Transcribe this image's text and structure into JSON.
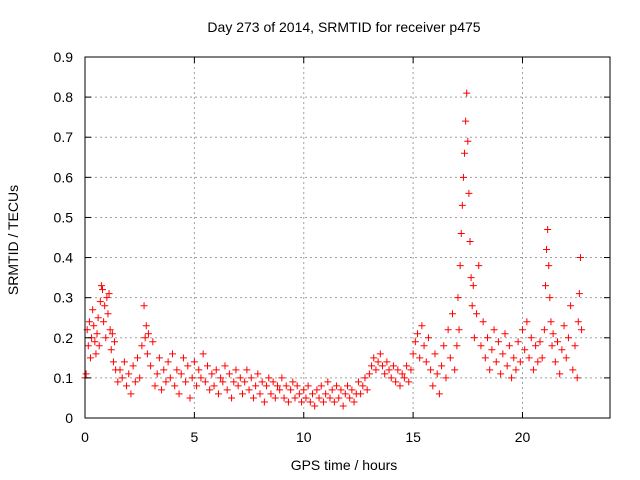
{
  "chart_data": {
    "type": "scatter",
    "title": "Day 273 of 2014, SRMTID for receiver p475",
    "xlabel": "GPS time / hours",
    "ylabel": "SRMTID / TECUs",
    "xlim": [
      0,
      24
    ],
    "ylim": [
      0,
      0.9
    ],
    "xticks": [
      0,
      5,
      10,
      15,
      20
    ],
    "yticks": [
      0,
      0.1,
      0.2,
      0.3,
      0.4,
      0.5,
      0.6,
      0.7,
      0.8,
      0.9
    ],
    "grid": true,
    "marker": "+",
    "color": "#ff0000",
    "series": [
      {
        "name": "SRMTID",
        "points": [
          [
            0.0,
            0.1
          ],
          [
            0.05,
            0.11
          ],
          [
            0.1,
            0.22
          ],
          [
            0.15,
            0.18
          ],
          [
            0.2,
            0.24
          ],
          [
            0.25,
            0.15
          ],
          [
            0.3,
            0.2
          ],
          [
            0.35,
            0.27
          ],
          [
            0.4,
            0.23
          ],
          [
            0.45,
            0.19
          ],
          [
            0.5,
            0.16
          ],
          [
            0.55,
            0.21
          ],
          [
            0.6,
            0.25
          ],
          [
            0.65,
            0.18
          ],
          [
            0.7,
            0.29
          ],
          [
            0.75,
            0.33
          ],
          [
            0.8,
            0.32
          ],
          [
            0.85,
            0.24
          ],
          [
            0.9,
            0.28
          ],
          [
            0.95,
            0.2
          ],
          [
            1.0,
            0.3
          ],
          [
            1.05,
            0.26
          ],
          [
            1.1,
            0.31
          ],
          [
            1.15,
            0.22
          ],
          [
            1.2,
            0.17
          ],
          [
            1.25,
            0.21
          ],
          [
            1.3,
            0.14
          ],
          [
            1.35,
            0.19
          ],
          [
            1.4,
            0.12
          ],
          [
            1.5,
            0.09
          ],
          [
            1.6,
            0.12
          ],
          [
            1.7,
            0.1
          ],
          [
            1.8,
            0.14
          ],
          [
            1.9,
            0.08
          ],
          [
            2.0,
            0.11
          ],
          [
            2.1,
            0.06
          ],
          [
            2.2,
            0.13
          ],
          [
            2.3,
            0.09
          ],
          [
            2.4,
            0.15
          ],
          [
            2.5,
            0.1
          ],
          [
            2.6,
            0.18
          ],
          [
            2.7,
            0.28
          ],
          [
            2.75,
            0.2
          ],
          [
            2.8,
            0.23
          ],
          [
            2.85,
            0.16
          ],
          [
            2.9,
            0.21
          ],
          [
            3.0,
            0.13
          ],
          [
            3.1,
            0.19
          ],
          [
            3.2,
            0.08
          ],
          [
            3.3,
            0.11
          ],
          [
            3.4,
            0.15
          ],
          [
            3.5,
            0.07
          ],
          [
            3.6,
            0.12
          ],
          [
            3.7,
            0.09
          ],
          [
            3.8,
            0.14
          ],
          [
            3.9,
            0.1
          ],
          [
            4.0,
            0.16
          ],
          [
            4.1,
            0.08
          ],
          [
            4.2,
            0.12
          ],
          [
            4.3,
            0.06
          ],
          [
            4.4,
            0.11
          ],
          [
            4.5,
            0.15
          ],
          [
            4.6,
            0.09
          ],
          [
            4.7,
            0.13
          ],
          [
            4.8,
            0.05
          ],
          [
            4.9,
            0.1
          ],
          [
            5.0,
            0.14
          ],
          [
            5.1,
            0.08
          ],
          [
            5.2,
            0.12
          ],
          [
            5.3,
            0.1
          ],
          [
            5.4,
            0.16
          ],
          [
            5.5,
            0.09
          ],
          [
            5.6,
            0.13
          ],
          [
            5.7,
            0.07
          ],
          [
            5.8,
            0.11
          ],
          [
            5.9,
            0.08
          ],
          [
            6.0,
            0.12
          ],
          [
            6.1,
            0.06
          ],
          [
            6.2,
            0.1
          ],
          [
            6.3,
            0.09
          ],
          [
            6.4,
            0.13
          ],
          [
            6.5,
            0.07
          ],
          [
            6.6,
            0.11
          ],
          [
            6.7,
            0.05
          ],
          [
            6.8,
            0.09
          ],
          [
            6.9,
            0.12
          ],
          [
            7.0,
            0.08
          ],
          [
            7.1,
            0.1
          ],
          [
            7.2,
            0.06
          ],
          [
            7.3,
            0.09
          ],
          [
            7.4,
            0.12
          ],
          [
            7.5,
            0.07
          ],
          [
            7.6,
            0.1
          ],
          [
            7.7,
            0.05
          ],
          [
            7.8,
            0.08
          ],
          [
            7.9,
            0.11
          ],
          [
            8.0,
            0.06
          ],
          [
            8.1,
            0.09
          ],
          [
            8.2,
            0.04
          ],
          [
            8.3,
            0.08
          ],
          [
            8.4,
            0.1
          ],
          [
            8.5,
            0.06
          ],
          [
            8.6,
            0.09
          ],
          [
            8.7,
            0.05
          ],
          [
            8.8,
            0.08
          ],
          [
            8.9,
            0.07
          ],
          [
            9.0,
            0.1
          ],
          [
            9.1,
            0.05
          ],
          [
            9.2,
            0.08
          ],
          [
            9.3,
            0.04
          ],
          [
            9.4,
            0.07
          ],
          [
            9.5,
            0.09
          ],
          [
            9.6,
            0.05
          ],
          [
            9.7,
            0.08
          ],
          [
            9.8,
            0.06
          ],
          [
            9.9,
            0.04
          ],
          [
            10.0,
            0.07
          ],
          [
            10.1,
            0.05
          ],
          [
            10.2,
            0.08
          ],
          [
            10.3,
            0.04
          ],
          [
            10.4,
            0.06
          ],
          [
            10.5,
            0.03
          ],
          [
            10.6,
            0.07
          ],
          [
            10.7,
            0.05
          ],
          [
            10.8,
            0.08
          ],
          [
            10.9,
            0.04
          ],
          [
            11.0,
            0.06
          ],
          [
            11.1,
            0.09
          ],
          [
            11.2,
            0.05
          ],
          [
            11.3,
            0.07
          ],
          [
            11.4,
            0.04
          ],
          [
            11.5,
            0.08
          ],
          [
            11.6,
            0.05
          ],
          [
            11.7,
            0.07
          ],
          [
            11.8,
            0.03
          ],
          [
            11.9,
            0.06
          ],
          [
            12.0,
            0.08
          ],
          [
            12.1,
            0.05
          ],
          [
            12.2,
            0.07
          ],
          [
            12.3,
            0.04
          ],
          [
            12.4,
            0.06
          ],
          [
            12.5,
            0.09
          ],
          [
            12.6,
            0.06
          ],
          [
            12.7,
            0.08
          ],
          [
            12.8,
            0.1
          ],
          [
            12.9,
            0.07
          ],
          [
            13.0,
            0.11
          ],
          [
            13.1,
            0.13
          ],
          [
            13.2,
            0.15
          ],
          [
            13.3,
            0.12
          ],
          [
            13.4,
            0.14
          ],
          [
            13.5,
            0.16
          ],
          [
            13.6,
            0.13
          ],
          [
            13.7,
            0.11
          ],
          [
            13.8,
            0.14
          ],
          [
            13.9,
            0.12
          ],
          [
            14.0,
            0.1
          ],
          [
            14.1,
            0.13
          ],
          [
            14.2,
            0.09
          ],
          [
            14.3,
            0.12
          ],
          [
            14.4,
            0.08
          ],
          [
            14.5,
            0.11
          ],
          [
            14.6,
            0.1
          ],
          [
            14.7,
            0.13
          ],
          [
            14.8,
            0.09
          ],
          [
            14.9,
            0.12
          ],
          [
            15.0,
            0.16
          ],
          [
            15.1,
            0.19
          ],
          [
            15.2,
            0.21
          ],
          [
            15.3,
            0.15
          ],
          [
            15.4,
            0.23
          ],
          [
            15.5,
            0.18
          ],
          [
            15.6,
            0.14
          ],
          [
            15.7,
            0.2
          ],
          [
            15.8,
            0.12
          ],
          [
            15.9,
            0.08
          ],
          [
            16.0,
            0.16
          ],
          [
            16.1,
            0.11
          ],
          [
            16.2,
            0.06
          ],
          [
            16.3,
            0.13
          ],
          [
            16.4,
            0.18
          ],
          [
            16.5,
            0.1
          ],
          [
            16.6,
            0.22
          ],
          [
            16.7,
            0.15
          ],
          [
            16.8,
            0.26
          ],
          [
            16.9,
            0.12
          ],
          [
            17.0,
            0.18
          ],
          [
            17.05,
            0.3
          ],
          [
            17.1,
            0.22
          ],
          [
            17.15,
            0.38
          ],
          [
            17.2,
            0.46
          ],
          [
            17.25,
            0.53
          ],
          [
            17.3,
            0.6
          ],
          [
            17.35,
            0.66
          ],
          [
            17.4,
            0.74
          ],
          [
            17.45,
            0.81
          ],
          [
            17.5,
            0.69
          ],
          [
            17.55,
            0.56
          ],
          [
            17.6,
            0.44
          ],
          [
            17.65,
            0.35
          ],
          [
            17.7,
            0.28
          ],
          [
            17.75,
            0.33
          ],
          [
            17.8,
            0.2
          ],
          [
            17.9,
            0.26
          ],
          [
            18.0,
            0.38
          ],
          [
            18.1,
            0.18
          ],
          [
            18.2,
            0.24
          ],
          [
            18.3,
            0.15
          ],
          [
            18.4,
            0.2
          ],
          [
            18.5,
            0.12
          ],
          [
            18.6,
            0.17
          ],
          [
            18.7,
            0.22
          ],
          [
            18.8,
            0.14
          ],
          [
            18.9,
            0.19
          ],
          [
            19.0,
            0.11
          ],
          [
            19.1,
            0.16
          ],
          [
            19.2,
            0.21
          ],
          [
            19.3,
            0.13
          ],
          [
            19.4,
            0.18
          ],
          [
            19.5,
            0.1
          ],
          [
            19.6,
            0.15
          ],
          [
            19.7,
            0.12
          ],
          [
            19.8,
            0.19
          ],
          [
            19.9,
            0.14
          ],
          [
            20.0,
            0.22
          ],
          [
            20.1,
            0.17
          ],
          [
            20.2,
            0.24
          ],
          [
            20.3,
            0.15
          ],
          [
            20.4,
            0.2
          ],
          [
            20.5,
            0.12
          ],
          [
            20.6,
            0.18
          ],
          [
            20.7,
            0.14
          ],
          [
            20.8,
            0.19
          ],
          [
            20.9,
            0.15
          ],
          [
            21.0,
            0.22
          ],
          [
            21.05,
            0.33
          ],
          [
            21.1,
            0.42
          ],
          [
            21.15,
            0.47
          ],
          [
            21.2,
            0.38
          ],
          [
            21.25,
            0.3
          ],
          [
            21.3,
            0.24
          ],
          [
            21.35,
            0.18
          ],
          [
            21.4,
            0.21
          ],
          [
            21.5,
            0.14
          ],
          [
            21.6,
            0.19
          ],
          [
            21.7,
            0.11
          ],
          [
            21.8,
            0.17
          ],
          [
            21.9,
            0.23
          ],
          [
            22.0,
            0.15
          ],
          [
            22.1,
            0.2
          ],
          [
            22.2,
            0.28
          ],
          [
            22.3,
            0.12
          ],
          [
            22.4,
            0.18
          ],
          [
            22.5,
            0.1
          ],
          [
            22.55,
            0.24
          ],
          [
            22.6,
            0.31
          ],
          [
            22.65,
            0.4
          ],
          [
            22.7,
            0.22
          ]
        ]
      }
    ]
  }
}
